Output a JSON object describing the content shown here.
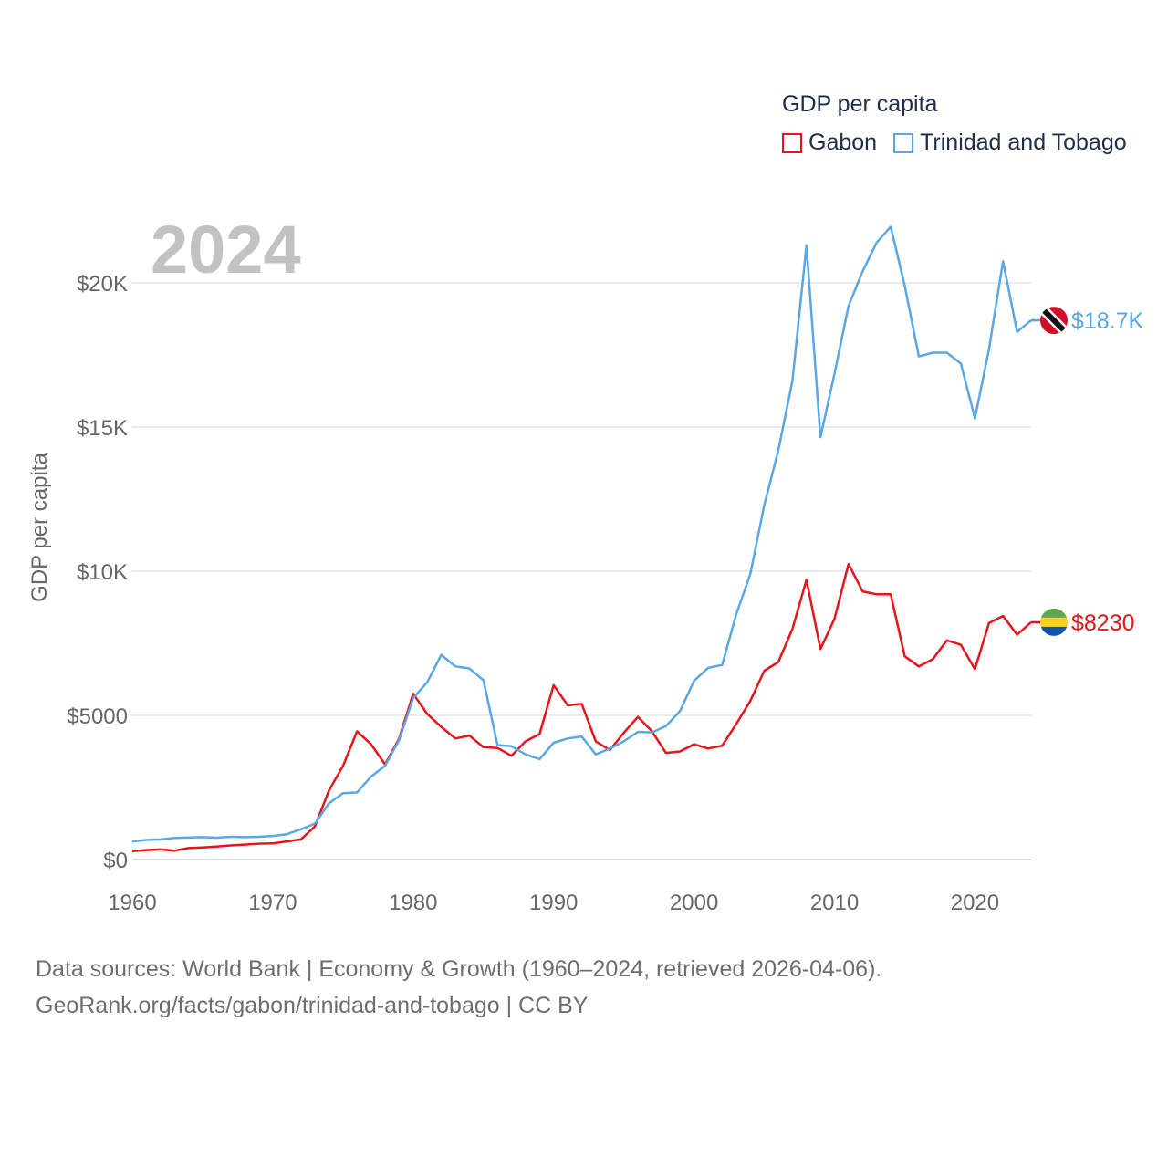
{
  "legend": {
    "title": "GDP per capita",
    "items": [
      "Gabon",
      "Trinidad and Tobago"
    ]
  },
  "year_label": "2024",
  "footer": {
    "line1": "Data sources: World Bank | Economy & Growth (1960–2024, retrieved 2026-04-06).",
    "line2": "GeoRank.org/facts/gabon/trinidad-and-tobago | CC BY"
  },
  "chart_data": {
    "type": "line",
    "title": "GDP per capita",
    "xlabel": "",
    "ylabel": "GDP per capita",
    "xlim": [
      1960,
      2024
    ],
    "ylim": [
      0,
      22000
    ],
    "x_ticks": [
      1960,
      1970,
      1980,
      1990,
      2000,
      2010,
      2020
    ],
    "x_tick_labels": [
      "1960",
      "1970",
      "1980",
      "1990",
      "2000",
      "2010",
      "2020"
    ],
    "y_ticks": [
      0,
      5000,
      10000,
      15000,
      20000
    ],
    "y_tick_labels": [
      "$0",
      "$5000",
      "$10K",
      "$15K",
      "$20K"
    ],
    "grid": true,
    "legend_position": "top-right",
    "x": [
      1960,
      1961,
      1962,
      1963,
      1964,
      1965,
      1966,
      1967,
      1968,
      1969,
      1970,
      1971,
      1972,
      1973,
      1974,
      1975,
      1976,
      1977,
      1978,
      1979,
      1980,
      1981,
      1982,
      1983,
      1984,
      1985,
      1986,
      1987,
      1988,
      1989,
      1990,
      1991,
      1992,
      1993,
      1994,
      1995,
      1996,
      1997,
      1998,
      1999,
      2000,
      2001,
      2002,
      2003,
      2004,
      2005,
      2006,
      2007,
      2008,
      2009,
      2010,
      2011,
      2012,
      2013,
      2014,
      2015,
      2016,
      2017,
      2018,
      2019,
      2020,
      2021,
      2022,
      2023,
      2024
    ],
    "series": [
      {
        "name": "Gabon",
        "color": "#e8141c",
        "end_label": "$8230",
        "flag": "gabon",
        "values": [
          290,
          330,
          350,
          310,
          400,
          420,
          450,
          490,
          520,
          550,
          560,
          630,
          700,
          1150,
          2400,
          3250,
          4450,
          4000,
          3300,
          4200,
          5750,
          5050,
          4600,
          4200,
          4300,
          3900,
          3870,
          3600,
          4100,
          4350,
          6050,
          5350,
          5400,
          4100,
          3800,
          4400,
          4950,
          4450,
          3700,
          3750,
          4000,
          3850,
          3950,
          4700,
          5500,
          6550,
          6850,
          8000,
          9700,
          7300,
          8350,
          10250,
          9300,
          9200,
          9200,
          7050,
          6700,
          6950,
          7600,
          7450,
          6600,
          8200,
          8450,
          7800,
          8230
        ]
      },
      {
        "name": "Trinidad and Tobago",
        "color": "#5aa7e6",
        "end_label": "$18.7K",
        "flag": "trinidad-and-tobago",
        "values": [
          630,
          680,
          700,
          750,
          770,
          780,
          760,
          790,
          780,
          790,
          820,
          880,
          1050,
          1250,
          1950,
          2300,
          2330,
          2880,
          3250,
          4150,
          5600,
          6150,
          7100,
          6700,
          6630,
          6220,
          3970,
          3930,
          3650,
          3480,
          4050,
          4200,
          4270,
          3650,
          3850,
          4100,
          4430,
          4410,
          4630,
          5150,
          6200,
          6650,
          6750,
          8500,
          9900,
          12300,
          14200,
          16600,
          21300,
          14650,
          16850,
          19200,
          20400,
          21400,
          21950,
          19900,
          17450,
          17580,
          17580,
          17200,
          15300,
          17700,
          20750,
          18300,
          18700
        ]
      }
    ]
  }
}
